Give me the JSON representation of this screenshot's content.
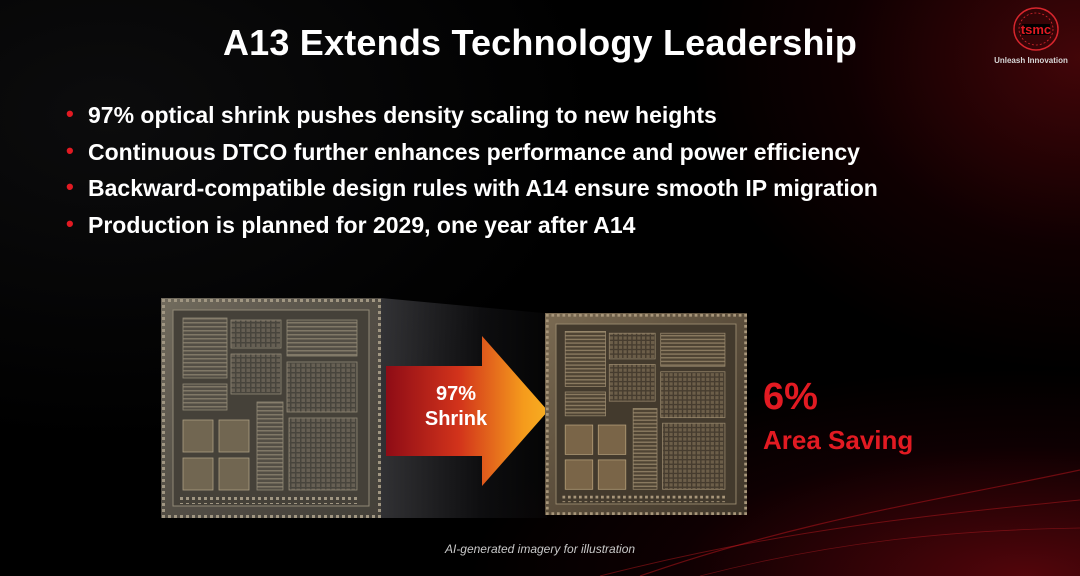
{
  "slide": {
    "title": "A13 Extends Technology Leadership",
    "bullets": [
      "97% optical shrink pushes density scaling to new heights",
      "Continuous DTCO further enhances performance and power efficiency",
      "Backward-compatible design rules with A14 ensure smooth IP migration",
      "Production is planned for 2029, one year after A14"
    ],
    "bullet_glyph": "•",
    "footnote": "AI-generated imagery for illustration"
  },
  "logo": {
    "wordmark": "tsmc",
    "tagline": "Unleash Innovation"
  },
  "graphic": {
    "arrow_line1": "97%",
    "arrow_line2": "Shrink",
    "saving_value": "6%",
    "saving_label": "Area Saving"
  },
  "colors": {
    "accent_red": "#e21a22",
    "arrow_orange": "#f7a21b",
    "arrow_dark_red": "#a8101a",
    "background": "#000000"
  }
}
